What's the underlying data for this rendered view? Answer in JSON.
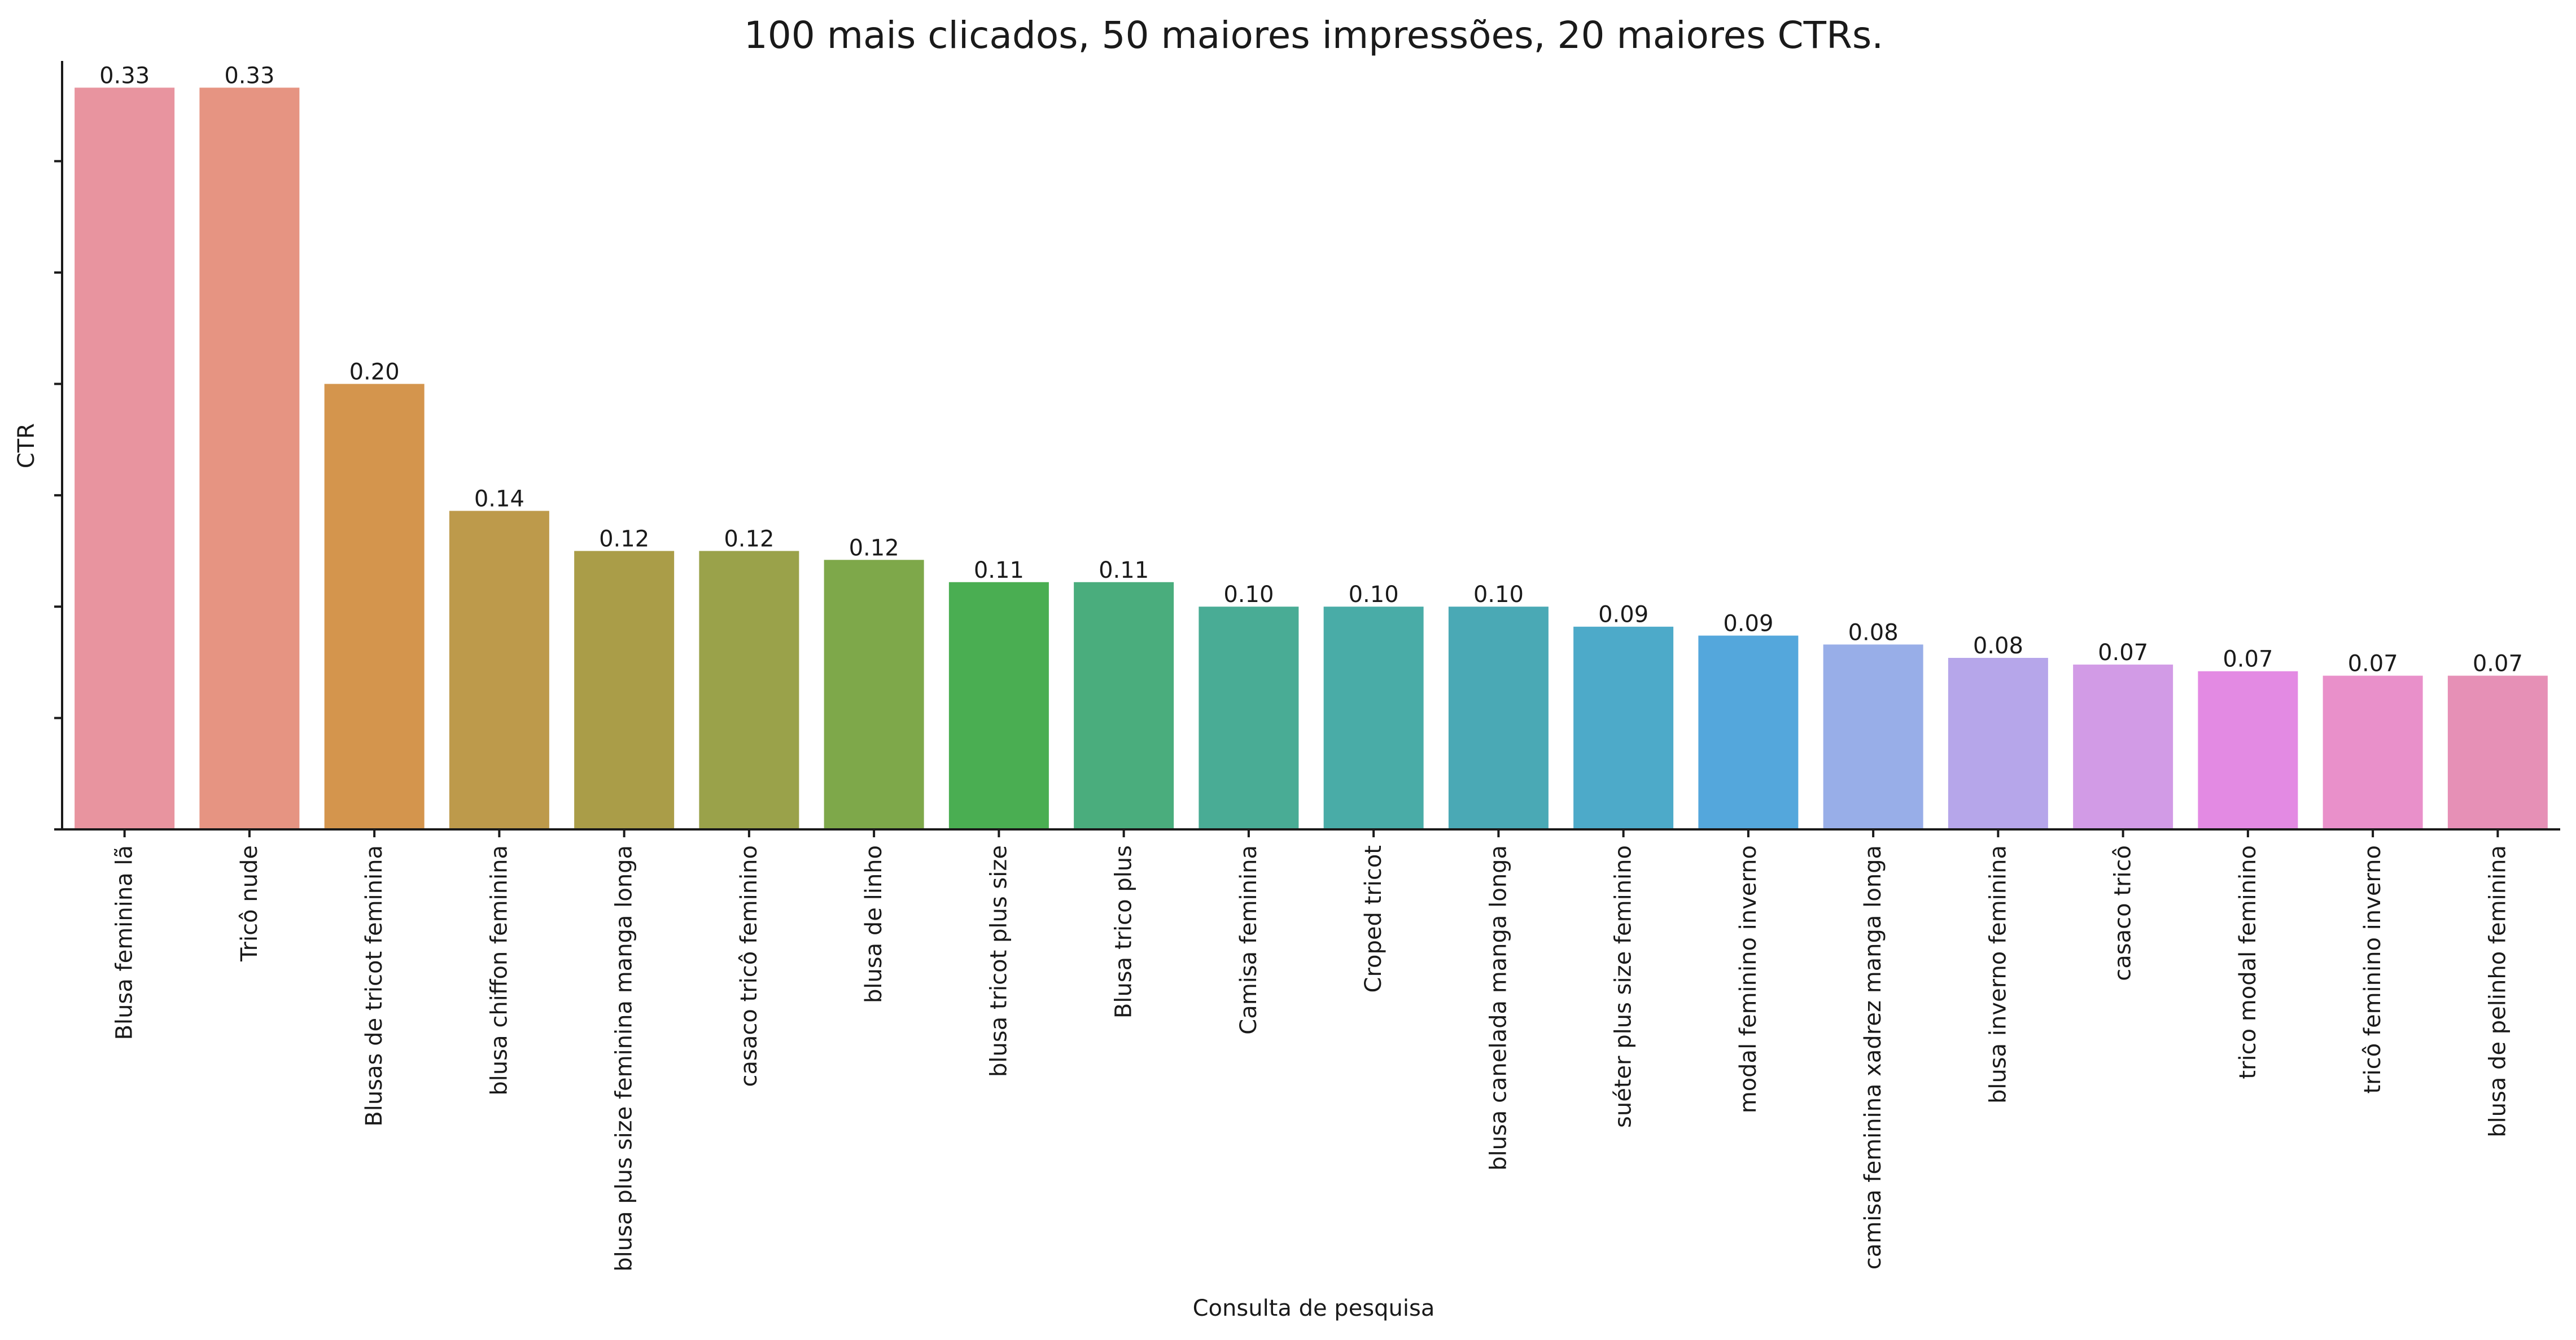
{
  "chart_data": {
    "type": "bar",
    "title": "100 mais clicados, 50 maiores impressões, 20 maiores CTRs.",
    "xlabel": "Consulta de pesquisa",
    "ylabel": "CTR",
    "ylim": [
      0,
      0.345
    ],
    "y_tick_labels_visible": false,
    "grid": false,
    "categories": [
      "Blusa feminina lã",
      "Tricô nude",
      "Blusas de tricot feminina",
      "blusa chiffon feminina",
      "blusa plus size feminina manga longa",
      "casaco tricô feminino",
      "blusa de linho",
      "blusa tricot plus size",
      "Blusa trico plus",
      "Camisa feminina",
      "Croped tricot",
      "blusa canelada manga longa",
      "suéter plus size feminino",
      "modal feminino inverno",
      "camisa feminina xadrez manga longa",
      "blusa inverno feminina",
      "casaco tricô",
      "trico modal feminino",
      "tricô feminino inverno",
      "blusa de pelinho feminina"
    ],
    "values": [
      0.333,
      0.333,
      0.2,
      0.143,
      0.125,
      0.125,
      0.121,
      0.111,
      0.111,
      0.1,
      0.1,
      0.1,
      0.091,
      0.087,
      0.083,
      0.077,
      0.074,
      0.071,
      0.069,
      0.069
    ],
    "data_labels": [
      "0.33",
      "0.33",
      "0.20",
      "0.14",
      "0.12",
      "0.12",
      "0.12",
      "0.11",
      "0.11",
      "0.10",
      "0.10",
      "0.10",
      "0.09",
      "0.09",
      "0.08",
      "0.08",
      "0.07",
      "0.07",
      "0.07",
      "0.07"
    ],
    "colors": [
      "#e8949f",
      "#e69482",
      "#d4954d",
      "#bd9a4b",
      "#aa9d48",
      "#9aa24a",
      "#7ea84a",
      "#4aae52",
      "#4aad7d",
      "#49ac95",
      "#49aca7",
      "#4aa9b5",
      "#4daac9",
      "#54a7dc",
      "#98aee8",
      "#b6a6ea",
      "#d29be6",
      "#e38ae3",
      "#e990ca",
      "#e690b6"
    ]
  }
}
